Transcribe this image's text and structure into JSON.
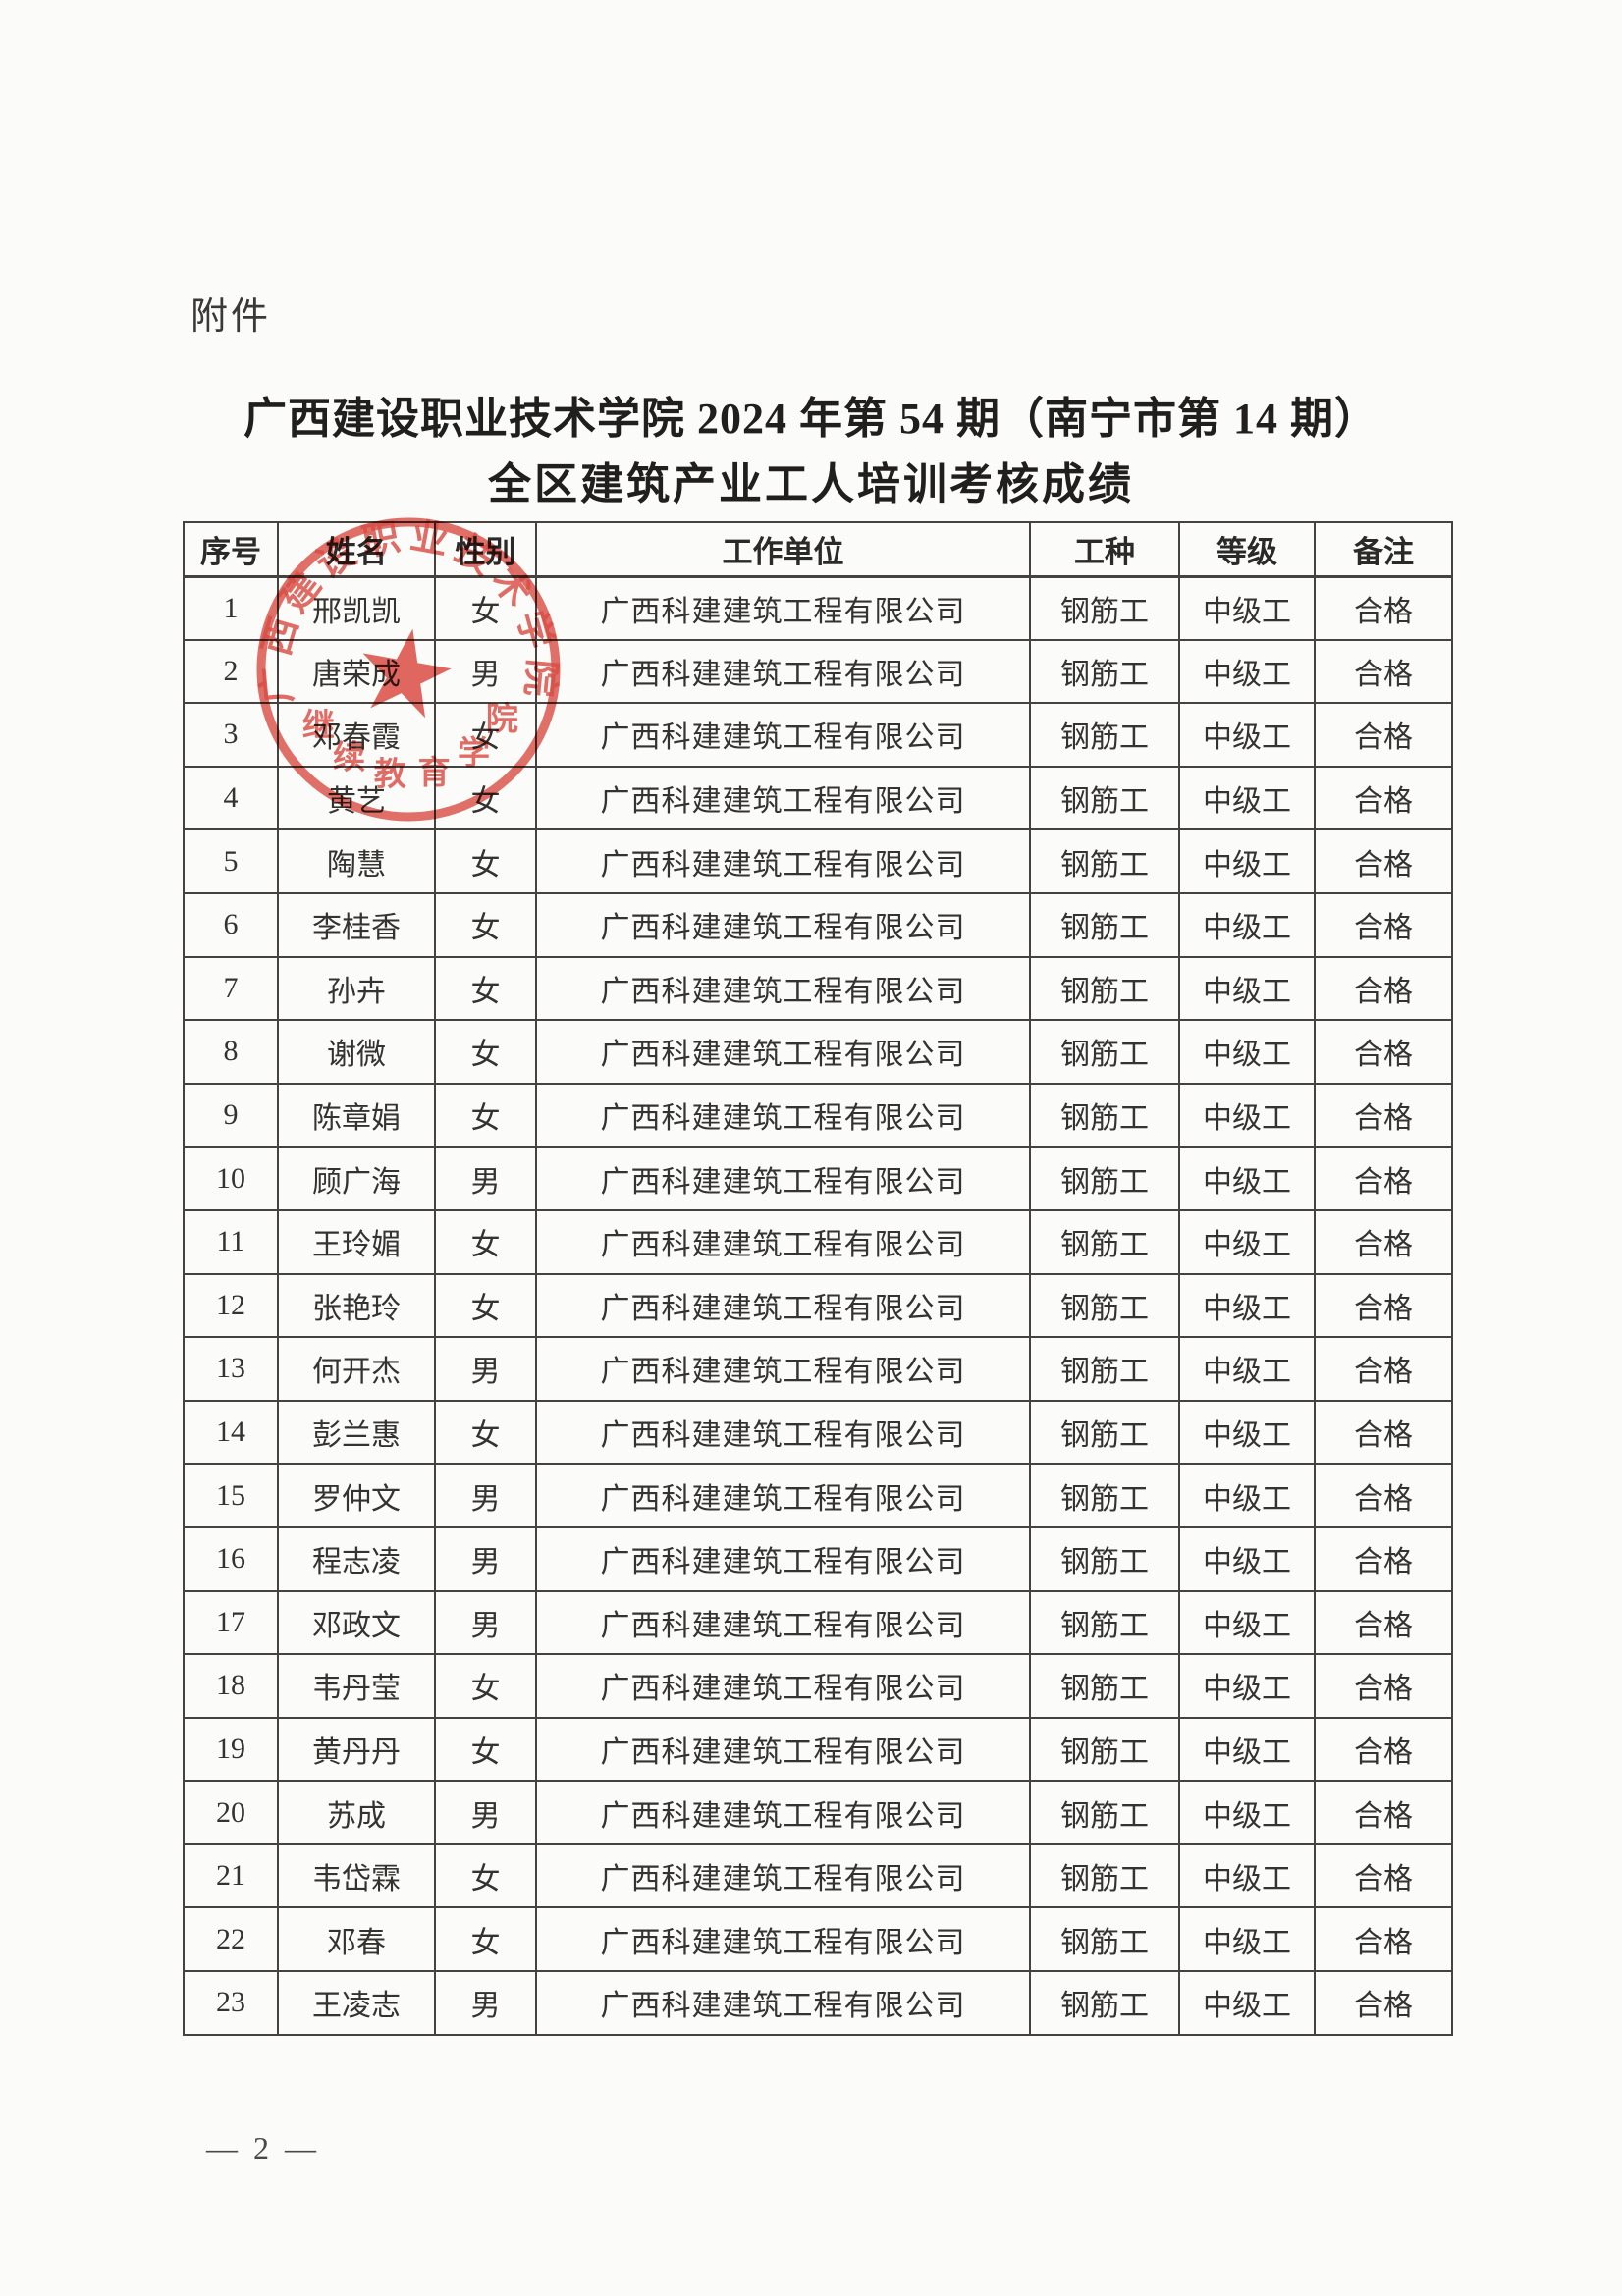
{
  "page": {
    "attachment_label": "附件",
    "title_line1": "广西建设职业技术学院 2024 年第 54 期（南宁市第 14 期）",
    "title_line2": "全区建筑产业工人培训考核成绩",
    "page_number": "— 2 —"
  },
  "seal": {
    "arc_text": "广西建设职业技术学院",
    "subtitle_text": "继续教育学院",
    "color": "#d93a30"
  },
  "table": {
    "headers": [
      "序号",
      "姓名",
      "性别",
      "工作单位",
      "工种",
      "等级",
      "备注"
    ],
    "rows": [
      {
        "no": "1",
        "name": "邢凯凯",
        "gender": "女",
        "company": "广西科建建筑工程有限公司",
        "trade": "钢筋工",
        "level": "中级工",
        "remark": "合格"
      },
      {
        "no": "2",
        "name": "唐荣成",
        "gender": "男",
        "company": "广西科建建筑工程有限公司",
        "trade": "钢筋工",
        "level": "中级工",
        "remark": "合格"
      },
      {
        "no": "3",
        "name": "邓春霞",
        "gender": "女",
        "company": "广西科建建筑工程有限公司",
        "trade": "钢筋工",
        "level": "中级工",
        "remark": "合格"
      },
      {
        "no": "4",
        "name": "黄艺",
        "gender": "女",
        "company": "广西科建建筑工程有限公司",
        "trade": "钢筋工",
        "level": "中级工",
        "remark": "合格"
      },
      {
        "no": "5",
        "name": "陶慧",
        "gender": "女",
        "company": "广西科建建筑工程有限公司",
        "trade": "钢筋工",
        "level": "中级工",
        "remark": "合格"
      },
      {
        "no": "6",
        "name": "李桂香",
        "gender": "女",
        "company": "广西科建建筑工程有限公司",
        "trade": "钢筋工",
        "level": "中级工",
        "remark": "合格"
      },
      {
        "no": "7",
        "name": "孙卉",
        "gender": "女",
        "company": "广西科建建筑工程有限公司",
        "trade": "钢筋工",
        "level": "中级工",
        "remark": "合格"
      },
      {
        "no": "8",
        "name": "谢微",
        "gender": "女",
        "company": "广西科建建筑工程有限公司",
        "trade": "钢筋工",
        "level": "中级工",
        "remark": "合格"
      },
      {
        "no": "9",
        "name": "陈章娟",
        "gender": "女",
        "company": "广西科建建筑工程有限公司",
        "trade": "钢筋工",
        "level": "中级工",
        "remark": "合格"
      },
      {
        "no": "10",
        "name": "顾广海",
        "gender": "男",
        "company": "广西科建建筑工程有限公司",
        "trade": "钢筋工",
        "level": "中级工",
        "remark": "合格"
      },
      {
        "no": "11",
        "name": "王玲媚",
        "gender": "女",
        "company": "广西科建建筑工程有限公司",
        "trade": "钢筋工",
        "level": "中级工",
        "remark": "合格"
      },
      {
        "no": "12",
        "name": "张艳玲",
        "gender": "女",
        "company": "广西科建建筑工程有限公司",
        "trade": "钢筋工",
        "level": "中级工",
        "remark": "合格"
      },
      {
        "no": "13",
        "name": "何开杰",
        "gender": "男",
        "company": "广西科建建筑工程有限公司",
        "trade": "钢筋工",
        "level": "中级工",
        "remark": "合格"
      },
      {
        "no": "14",
        "name": "彭兰惠",
        "gender": "女",
        "company": "广西科建建筑工程有限公司",
        "trade": "钢筋工",
        "level": "中级工",
        "remark": "合格"
      },
      {
        "no": "15",
        "name": "罗仲文",
        "gender": "男",
        "company": "广西科建建筑工程有限公司",
        "trade": "钢筋工",
        "level": "中级工",
        "remark": "合格"
      },
      {
        "no": "16",
        "name": "程志凌",
        "gender": "男",
        "company": "广西科建建筑工程有限公司",
        "trade": "钢筋工",
        "level": "中级工",
        "remark": "合格"
      },
      {
        "no": "17",
        "name": "邓政文",
        "gender": "男",
        "company": "广西科建建筑工程有限公司",
        "trade": "钢筋工",
        "level": "中级工",
        "remark": "合格"
      },
      {
        "no": "18",
        "name": "韦丹莹",
        "gender": "女",
        "company": "广西科建建筑工程有限公司",
        "trade": "钢筋工",
        "level": "中级工",
        "remark": "合格"
      },
      {
        "no": "19",
        "name": "黄丹丹",
        "gender": "女",
        "company": "广西科建建筑工程有限公司",
        "trade": "钢筋工",
        "level": "中级工",
        "remark": "合格"
      },
      {
        "no": "20",
        "name": "苏成",
        "gender": "男",
        "company": "广西科建建筑工程有限公司",
        "trade": "钢筋工",
        "level": "中级工",
        "remark": "合格"
      },
      {
        "no": "21",
        "name": "韦岱霖",
        "gender": "女",
        "company": "广西科建建筑工程有限公司",
        "trade": "钢筋工",
        "level": "中级工",
        "remark": "合格"
      },
      {
        "no": "22",
        "name": "邓春",
        "gender": "女",
        "company": "广西科建建筑工程有限公司",
        "trade": "钢筋工",
        "level": "中级工",
        "remark": "合格"
      },
      {
        "no": "23",
        "name": "王凌志",
        "gender": "男",
        "company": "广西科建建筑工程有限公司",
        "trade": "钢筋工",
        "level": "中级工",
        "remark": "合格"
      }
    ]
  }
}
